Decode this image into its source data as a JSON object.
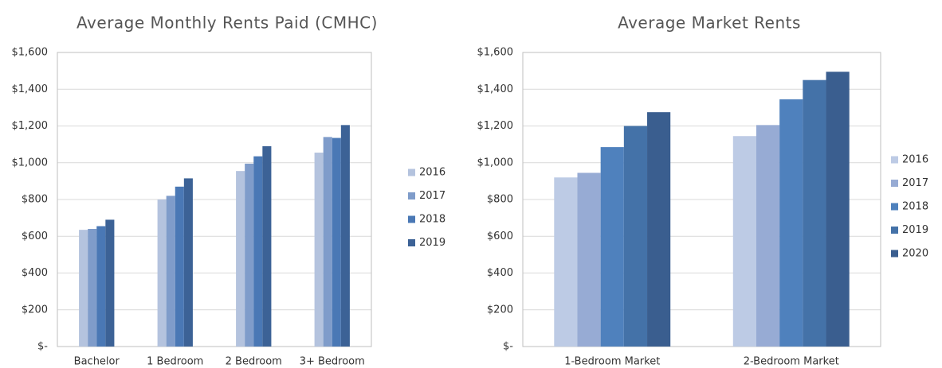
{
  "chart_data": [
    {
      "type": "bar",
      "title": "Average Monthly Rents Paid (CMHC)",
      "categories": [
        "Bachelor",
        "1 Bedroom",
        "2 Bedroom",
        "3+ Bedroom"
      ],
      "series": [
        {
          "name": "2016",
          "color": "#b4c3de",
          "values": [
            635,
            800,
            955,
            1055
          ]
        },
        {
          "name": "2017",
          "color": "#7f9cca",
          "values": [
            640,
            820,
            995,
            1140
          ]
        },
        {
          "name": "2018",
          "color": "#4a78b5",
          "values": [
            655,
            870,
            1035,
            1135
          ]
        },
        {
          "name": "2019",
          "color": "#3c6296",
          "values": [
            690,
            915,
            1090,
            1205
          ]
        }
      ],
      "ylim": [
        0,
        1600
      ],
      "yticks": [
        {
          "value": 0,
          "label": "$-"
        },
        {
          "value": 200,
          "label": "$200"
        },
        {
          "value": 400,
          "label": "$400"
        },
        {
          "value": 600,
          "label": "$600"
        },
        {
          "value": 800,
          "label": "$800"
        },
        {
          "value": 1000,
          "label": "$1,000"
        },
        {
          "value": 1200,
          "label": "$1,200"
        },
        {
          "value": 1400,
          "label": "$1,400"
        },
        {
          "value": 1600,
          "label": "$1,600"
        }
      ],
      "grid": true,
      "legend": "right"
    },
    {
      "type": "bar",
      "title": "Average Market Rents",
      "categories": [
        "1-Bedroom Market",
        "2-Bedroom Market"
      ],
      "series": [
        {
          "name": "2016",
          "color": "#bdcbe5",
          "values": [
            920,
            1145
          ]
        },
        {
          "name": "2017",
          "color": "#97abd4",
          "values": [
            945,
            1205
          ]
        },
        {
          "name": "2018",
          "color": "#4f81bd",
          "values": [
            1085,
            1345
          ]
        },
        {
          "name": "2019",
          "color": "#4472a8",
          "values": [
            1200,
            1450
          ]
        },
        {
          "name": "2020",
          "color": "#3a5e8f",
          "values": [
            1275,
            1495
          ]
        }
      ],
      "ylim": [
        0,
        1600
      ],
      "yticks": [
        {
          "value": 0,
          "label": "$-"
        },
        {
          "value": 200,
          "label": "$200"
        },
        {
          "value": 400,
          "label": "$400"
        },
        {
          "value": 600,
          "label": "$600"
        },
        {
          "value": 800,
          "label": "$800"
        },
        {
          "value": 1000,
          "label": "$1,000"
        },
        {
          "value": 1200,
          "label": "$1,200"
        },
        {
          "value": 1400,
          "label": "$1,400"
        },
        {
          "value": 1600,
          "label": "$1,600"
        }
      ],
      "grid": true,
      "legend": "right"
    }
  ]
}
